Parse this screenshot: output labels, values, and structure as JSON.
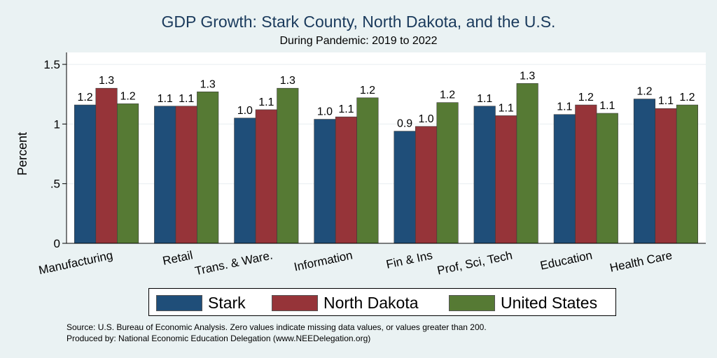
{
  "chart_data": {
    "type": "bar",
    "title": "GDP Growth: Stark County, North Dakota, and the U.S.",
    "subtitle": "During Pandemic: 2019 to 2022",
    "xlabel": "",
    "ylabel": "Percent",
    "ylim": [
      0,
      1.6
    ],
    "yticks": [
      0,
      0.5,
      1,
      1.5
    ],
    "ytick_labels": [
      "0",
      ".5",
      "1",
      "1.5"
    ],
    "grid": true,
    "legend_position": "bottom",
    "categories": [
      "Manufacturing",
      "Retail",
      "Trans. & Ware.",
      "Information",
      "Fin & Ins",
      "Prof, Sci, Tech",
      "Education",
      "Health Care"
    ],
    "series": [
      {
        "name": "Stark",
        "color": "#1f4e79",
        "values": [
          1.16,
          1.15,
          1.05,
          1.04,
          0.94,
          1.15,
          1.08,
          1.21
        ],
        "labels": [
          "1.2",
          "1.1",
          "1.0",
          "1.0",
          "0.9",
          "1.1",
          "1.1",
          "1.2"
        ]
      },
      {
        "name": "North Dakota",
        "color": "#963439",
        "values": [
          1.3,
          1.15,
          1.12,
          1.06,
          0.98,
          1.07,
          1.16,
          1.13
        ],
        "labels": [
          "1.3",
          "1.1",
          "1.1",
          "1.1",
          "1.0",
          "1.1",
          "1.2",
          "1.1"
        ]
      },
      {
        "name": "United States",
        "color": "#567a34",
        "values": [
          1.17,
          1.27,
          1.3,
          1.22,
          1.18,
          1.34,
          1.09,
          1.16
        ],
        "labels": [
          "1.2",
          "1.3",
          "1.3",
          "1.2",
          "1.2",
          "1.3",
          "1.1",
          "1.2"
        ]
      }
    ]
  },
  "source_note": "Source: U.S. Bureau of Economic Analysis. Zero values indicate missing data values, or values greater than 200.",
  "produced_note": "Produced by: National Economic Education Delegation (www.NEEDelegation.org)"
}
